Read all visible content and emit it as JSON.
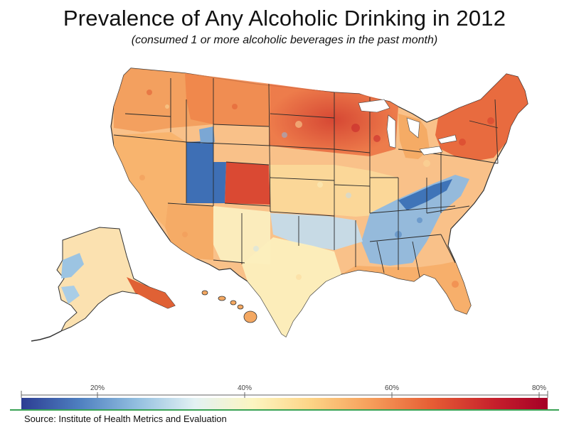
{
  "title": "Prevalence of Any Alcoholic Drinking in 2012",
  "subtitle": "(consumed 1 or more alcoholic beverages in the past month)",
  "source": "Source: Institute of Health Metrics and Evaluation",
  "legend": {
    "ticks": [
      "20%",
      "40%",
      "60%",
      "80%"
    ],
    "colors": [
      "#2c3d93",
      "#4e7fc0",
      "#93bfe0",
      "#e3f1f3",
      "#fcf5c1",
      "#fdd486",
      "#f6a05c",
      "#e65d34",
      "#c61f2c",
      "#a50026"
    ]
  },
  "palette": {
    "very_low": "#2f5fae",
    "low": "#7fafd8",
    "mid_low": "#cfe3ea",
    "mid": "#fbf0b7",
    "mid_high": "#fbc98a",
    "high": "#f0874e",
    "very_high": "#d8402b"
  }
}
